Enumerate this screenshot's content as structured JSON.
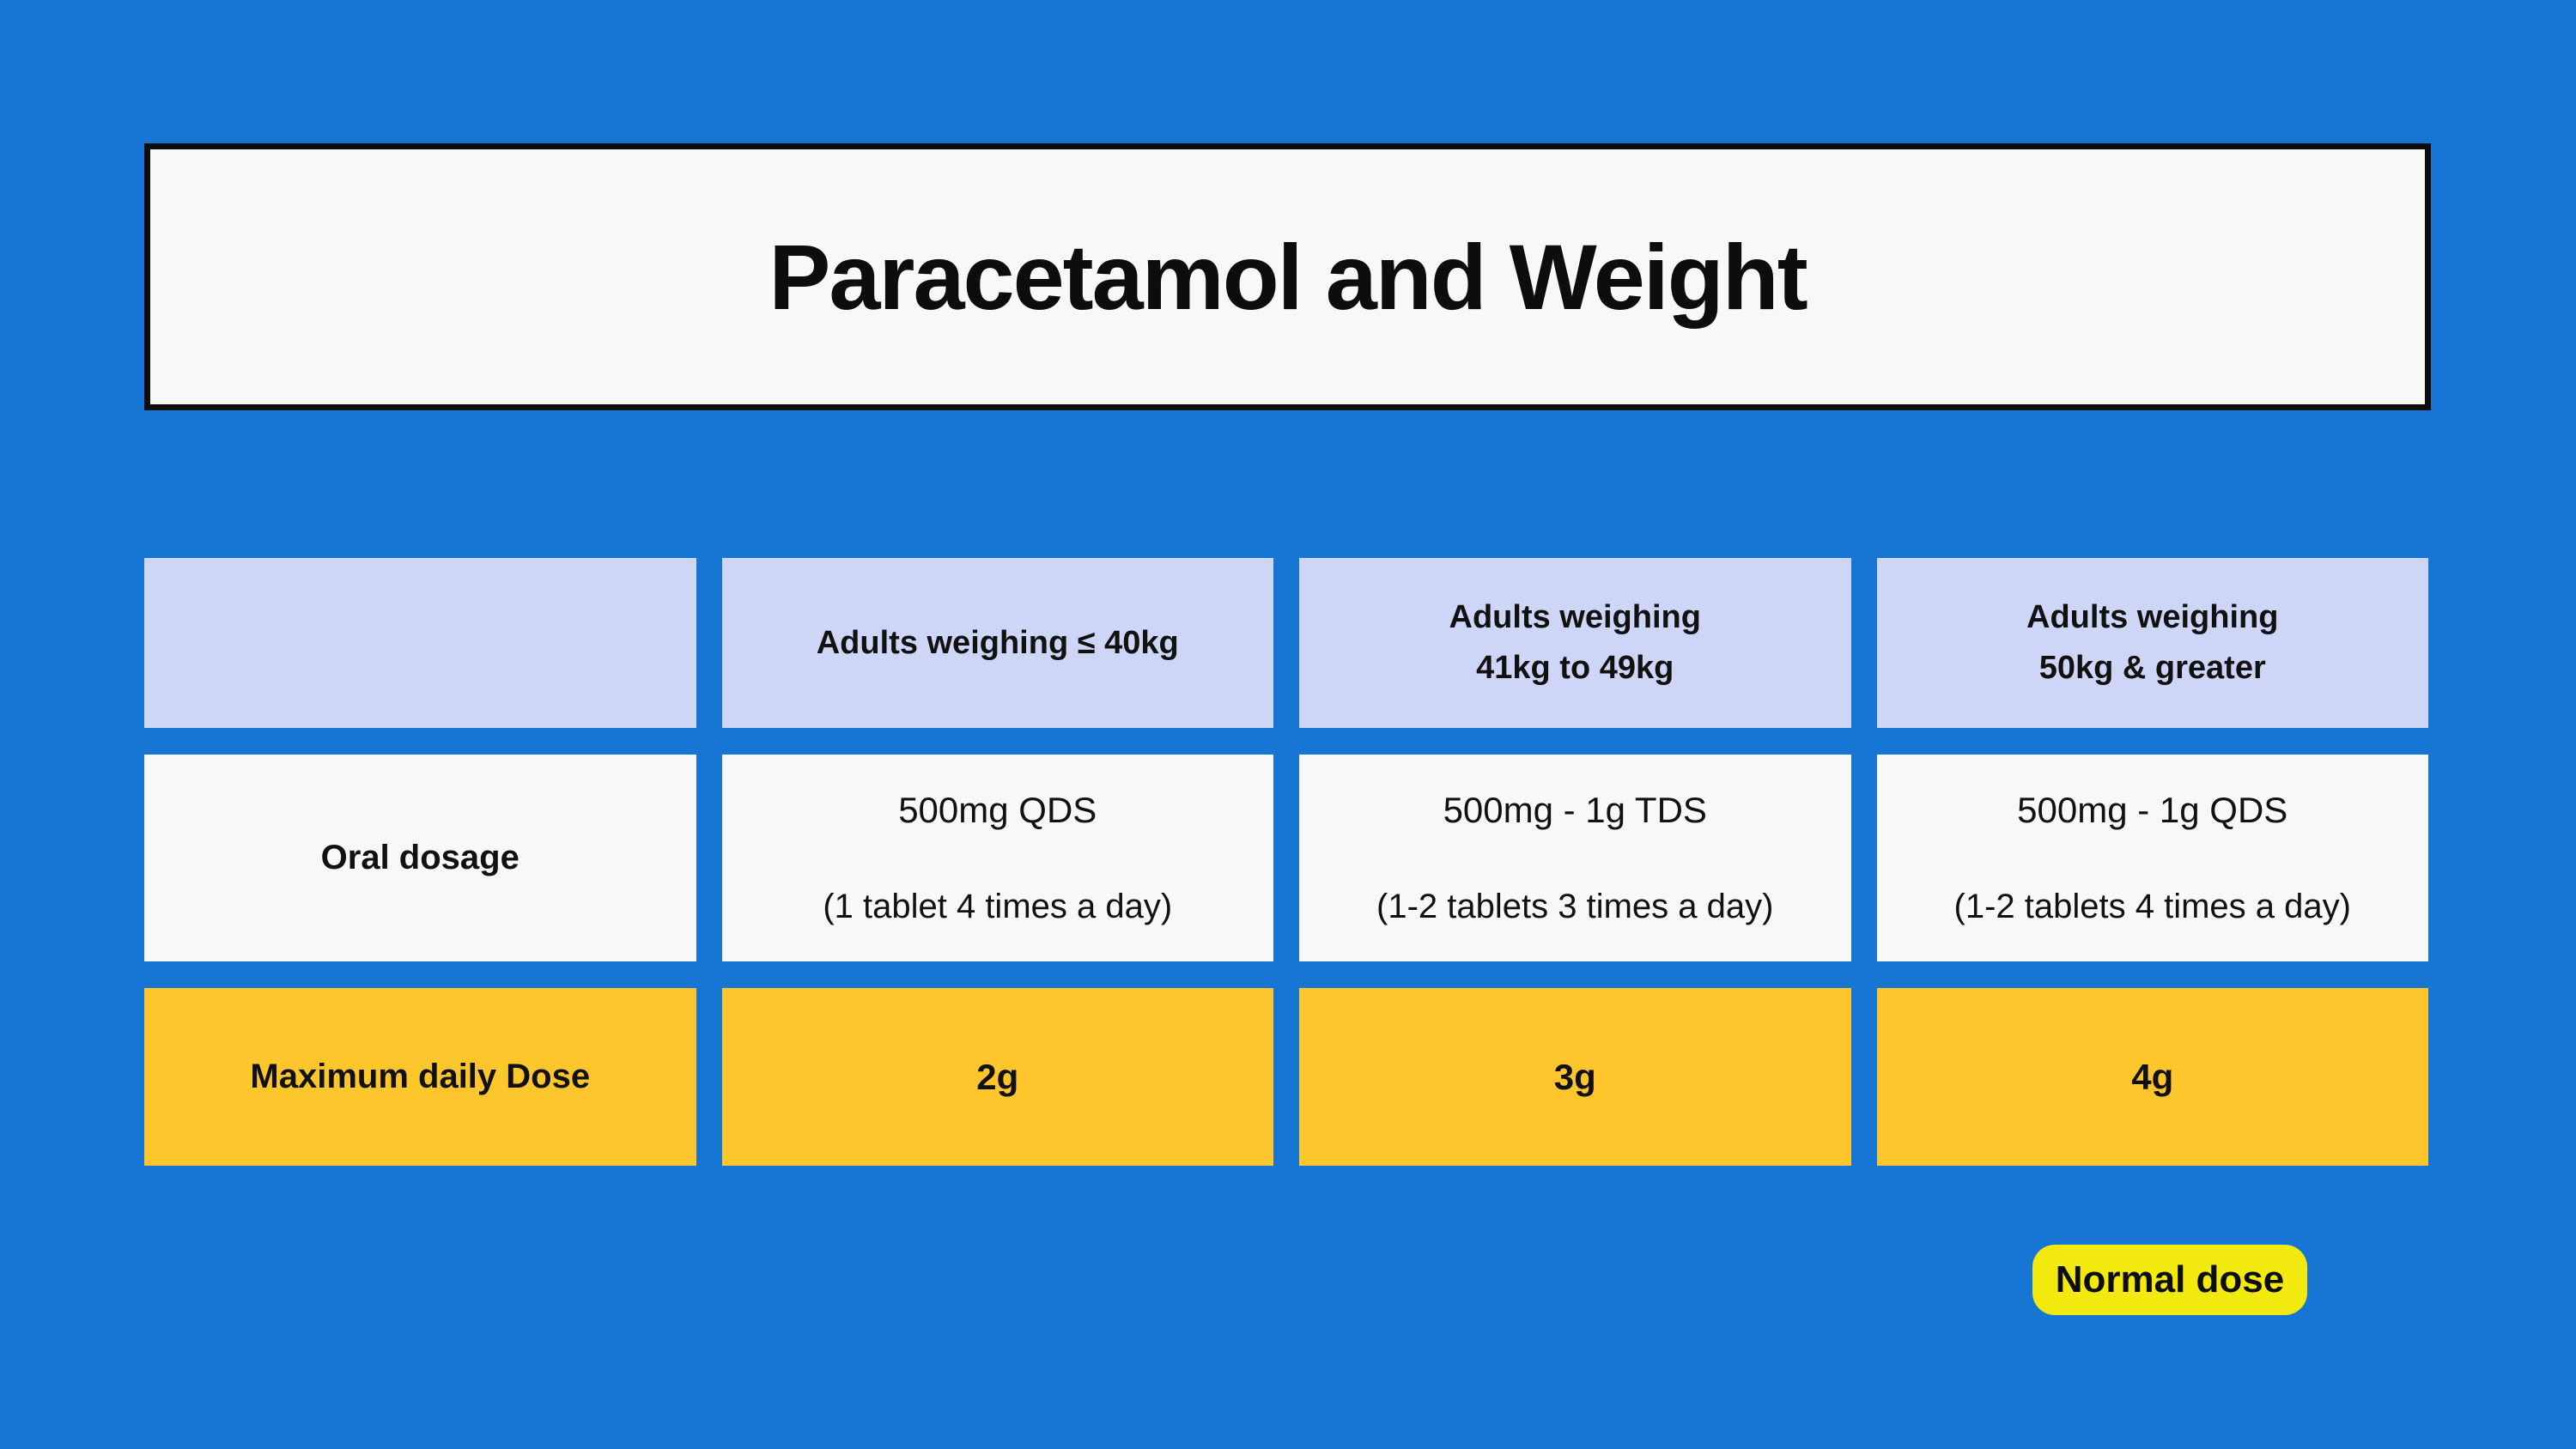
{
  "colors": {
    "background": "#1776d4",
    "title_box_bg": "#f8f8f8",
    "title_box_border": "#0d0d0d",
    "header_cell_bg": "#ced6f7",
    "light_cell_bg": "#f8f8f8",
    "max_row_bg": "#fdc62c",
    "badge_bg": "#f2e90e",
    "text": "#111111"
  },
  "title": {
    "text": "Paracetamol and Weight"
  },
  "table": {
    "headers": [
      {
        "text": ""
      },
      {
        "text": "Adults weighing ≤ 40kg"
      },
      {
        "text": "Adults weighing\n41kg to 49kg"
      },
      {
        "text": "Adults weighing\n50kg & greater"
      }
    ],
    "oral_row": {
      "label": "Oral dosage",
      "cells": [
        {
          "dose": "500mg QDS",
          "detail": "(1 tablet 4 times a day)"
        },
        {
          "dose": "500mg - 1g TDS",
          "detail": "(1-2 tablets 3 times a day)"
        },
        {
          "dose": "500mg - 1g QDS",
          "detail": "(1-2 tablets 4 times a day)"
        }
      ]
    },
    "max_row": {
      "label": "Maximum daily Dose",
      "cells": [
        {
          "value": "2g"
        },
        {
          "value": "3g"
        },
        {
          "value": "4g"
        }
      ]
    }
  },
  "legend": {
    "normal_dose_label": "Normal dose"
  }
}
